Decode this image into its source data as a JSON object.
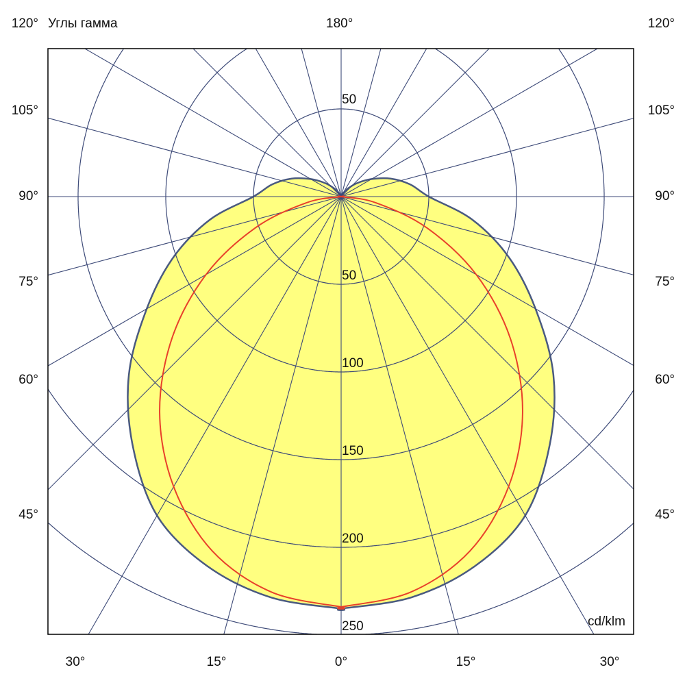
{
  "chart_data": {
    "type": "polar",
    "title": "Углы гамма",
    "unit_label": "cd/klm",
    "radial_ticks": [
      50,
      100,
      150,
      200,
      250
    ],
    "top_radial_label": "50",
    "radial_max_visible": 250,
    "angle_step_deg": 15,
    "top_label": "180°",
    "side_labels": [
      "120°",
      "105°",
      "90°",
      "75°",
      "60°",
      "45°"
    ],
    "bottom_labels": [
      "30°",
      "15°",
      "0°",
      "15°",
      "30°"
    ],
    "gamma_deg": [
      0,
      10,
      20,
      30,
      40,
      50,
      60,
      70,
      80,
      90,
      100,
      110,
      120,
      130,
      140,
      150,
      160,
      170,
      180
    ],
    "series": [
      {
        "color": "#ffff80",
        "stroke": "#4a5a80",
        "filled": true,
        "values": [
          235,
          232,
          224,
          210,
          185,
          158,
          128,
          102,
          76,
          50,
          40,
          30,
          20,
          12,
          6,
          2,
          0,
          0,
          0
        ]
      },
      {
        "color": "#e8402a",
        "filled": false,
        "values": [
          234,
          229,
          215,
          191,
          161,
          126,
          89,
          52,
          20,
          0,
          0,
          0,
          0,
          0,
          0,
          0,
          0,
          0,
          0
        ]
      }
    ],
    "grid": true,
    "colors": {
      "grid": "#3d4a78",
      "frame": "#000000"
    }
  }
}
